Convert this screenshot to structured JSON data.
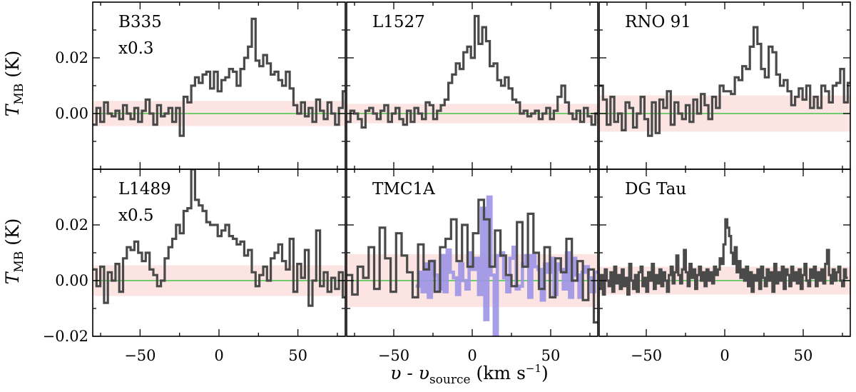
{
  "chart_data": {
    "type": "line",
    "layout": "2x3 grid, shared axes",
    "xlabel_parts": {
      "main": "υ - υ",
      "sub": "source",
      "unit_open": " (km s",
      "sup": "−1",
      "unit_close": ")"
    },
    "ylabel_parts": {
      "main": "T",
      "sub": "MB",
      "unit": " (K)"
    },
    "xlim": [
      -80,
      80
    ],
    "ylim": [
      -0.02,
      0.04
    ],
    "xticks": [
      -50,
      0,
      50
    ],
    "xtick_labels": [
      "−50",
      "0",
      "50"
    ],
    "yticks": [
      -0.02,
      0.0,
      0.02
    ],
    "ytick_labels": [
      "−0.02",
      "0.00",
      "0.02"
    ],
    "colors": {
      "spectrum": "#4a4a4a",
      "zero_line": "#5cc85c",
      "noise_band": "#fbe4e2",
      "overlay": "#9c94e6"
    },
    "panels": [
      {
        "label": "B335",
        "scale": "x0.3",
        "noise": 0.0045,
        "step": 2.4,
        "values": [
          -0.004,
          0.002,
          -0.003,
          0.004,
          0.0,
          -0.001,
          0.001,
          -0.002,
          0.003,
          0.0,
          -0.002,
          0.002,
          -0.003,
          0.001,
          0.005,
          0.0,
          -0.004,
          0.003,
          -0.001,
          0.0,
          0.002,
          -0.003,
          0.002,
          -0.008,
          0.006,
          0.004,
          0.01,
          0.013,
          0.011,
          0.014,
          0.015,
          0.009,
          0.015,
          0.008,
          0.012,
          0.013,
          0.016,
          0.015,
          0.01,
          0.016,
          0.02,
          0.024,
          0.034,
          0.019,
          0.017,
          0.021,
          0.018,
          0.014,
          0.015,
          0.012,
          0.01,
          0.015,
          0.009,
          0.003,
          0.0,
          0.004,
          -0.001,
          0.002,
          -0.003,
          0.005,
          0.001,
          -0.002,
          0.004,
          0.0,
          -0.004,
          0.002,
          0.008,
          -0.003,
          0.001,
          0.0,
          -0.003,
          0.002,
          0.0,
          0.007,
          -0.012
        ]
      },
      {
        "label": "L1527",
        "scale": "",
        "noise": 0.0035,
        "step": 2.4,
        "values": [
          -0.003,
          0.001,
          0.0,
          -0.002,
          -0.005,
          0.001,
          0.002,
          0.0,
          -0.002,
          0.001,
          0.003,
          -0.003,
          0.0,
          0.002,
          -0.002,
          -0.004,
          0.001,
          -0.003,
          0.002,
          0.0,
          -0.002,
          0.004,
          0.003,
          -0.002,
          0.001,
          0.003,
          0.005,
          0.011,
          0.014,
          0.018,
          0.016,
          0.022,
          0.024,
          0.02,
          0.035,
          0.025,
          0.031,
          0.026,
          0.017,
          0.018,
          0.012,
          0.01,
          0.013,
          0.009,
          0.005,
          0.004,
          0.0,
          0.001,
          -0.001,
          0.0,
          0.001,
          -0.002,
          0.0,
          0.002,
          -0.002,
          0.001,
          0.006,
          0.01,
          0.004,
          0.0,
          -0.002,
          0.001,
          -0.003,
          0.002,
          -0.001,
          -0.004,
          0.0,
          -0.001,
          -0.003,
          -0.002,
          0.0,
          -0.004,
          -0.003
        ]
      },
      {
        "label": "RNO 91",
        "scale": "",
        "noise": 0.0065,
        "step": 2.4,
        "values": [
          0.01,
          0.005,
          -0.004,
          0.006,
          -0.003,
          0.0,
          -0.006,
          0.004,
          0.002,
          -0.005,
          0.0,
          0.006,
          -0.002,
          -0.008,
          0.004,
          -0.007,
          0.005,
          0.002,
          0.008,
          -0.004,
          0.004,
          0.0,
          -0.002,
          0.003,
          -0.003,
          0.005,
          0.0,
          0.007,
          0.003,
          -0.002,
          0.006,
          0.002,
          0.01,
          0.008,
          0.008,
          0.007,
          0.013,
          0.012,
          0.017,
          0.016,
          0.024,
          0.031,
          0.025,
          0.016,
          0.013,
          0.024,
          0.022,
          0.014,
          0.01,
          0.012,
          0.008,
          0.003,
          0.006,
          0.009,
          0.005,
          0.01,
          0.002,
          0.006,
          0.002,
          0.01,
          0.008,
          0.004,
          0.01,
          0.011,
          0.016,
          0.004,
          0.011,
          0.0,
          -0.003,
          0.007,
          0.012,
          0.003,
          0.011,
          0.005,
          0.012,
          0.002
        ]
      },
      {
        "label": "L1489",
        "scale": "x0.5",
        "noise": 0.0055,
        "step": 2.4,
        "values": [
          0.004,
          -0.002,
          0.005,
          -0.008,
          0.003,
          0.0,
          0.006,
          -0.004,
          0.008,
          0.012,
          0.011,
          0.014,
          0.01,
          0.007,
          0.01,
          0.004,
          0.002,
          -0.002,
          0.0,
          0.008,
          0.012,
          0.015,
          0.02,
          0.017,
          0.025,
          0.026,
          0.04,
          0.029,
          0.027,
          0.025,
          0.021,
          0.02,
          0.02,
          0.016,
          0.018,
          0.02,
          0.016,
          0.015,
          0.013,
          0.014,
          0.009,
          0.011,
          0.003,
          -0.002,
          0.002,
          0.005,
          0.0,
          0.008,
          0.01,
          0.013,
          0.007,
          0.004,
          0.015,
          -0.004,
          0.006,
          0.001,
          0.011,
          -0.009,
          0.0,
          0.018,
          -0.002,
          0.003,
          -0.004,
          0.001,
          -0.003,
          0.003,
          -0.006,
          -0.012,
          0.002,
          -0.008,
          -0.004,
          0.0
        ]
      },
      {
        "label": "TMC1A",
        "scale": "",
        "noise": 0.0095,
        "step": 3.5,
        "values": [
          0.002,
          -0.005,
          0.005,
          0.001,
          0.012,
          -0.003,
          0.019,
          0.008,
          -0.004,
          0.017,
          0.009,
          0.003,
          -0.006,
          0.013,
          0.004,
          0.007,
          -0.004,
          0.012,
          0.015,
          0.022,
          0.007,
          0.02,
          0.005,
          0.017,
          0.029,
          0.022,
          0.005,
          0.018,
          0.009,
          0.002,
          -0.002,
          0.021,
          0.005,
          0.024,
          0.01,
          -0.003,
          0.012,
          -0.006,
          0.008,
          0.003,
          0.015,
          0.0,
          0.007,
          -0.007,
          0.004,
          -0.015,
          0.009,
          0.002,
          -0.009,
          0.003
        ]
      },
      {
        "label": "DG Tau",
        "scale": "",
        "noise": 0.005,
        "step": 1.2,
        "values": [
          -0.003,
          0.002,
          -0.005,
          0.004,
          0.0,
          -0.002,
          0.003,
          -0.004,
          0.005,
          -0.001,
          0.002,
          -0.003,
          0.004,
          -0.002,
          0.001,
          -0.005,
          0.006,
          0.0,
          -0.003,
          0.002,
          -0.004,
          0.003,
          0.005,
          -0.002,
          0.001,
          -0.004,
          0.003,
          0.0,
          0.006,
          -0.003,
          0.002,
          -0.001,
          0.004,
          -0.002,
          0.003,
          0.0,
          -0.004,
          0.002,
          0.005,
          -0.001,
          0.003,
          0.009,
          0.002,
          -0.001,
          0.004,
          0.011,
          0.003,
          -0.002,
          0.006,
          0.001,
          0.004,
          -0.003,
          0.002,
          0.005,
          0.0,
          0.003,
          -0.002,
          0.004,
          0.0,
          0.003,
          -0.001,
          0.005,
          0.002,
          0.004,
          0.008,
          0.006,
          0.013,
          0.022,
          0.019,
          0.016,
          0.01,
          0.006,
          0.012,
          0.003,
          0.007,
          0.001,
          0.004,
          0.0,
          0.005,
          -0.002,
          0.003,
          -0.004,
          0.002,
          0.0,
          0.004,
          -0.003,
          0.005,
          0.001,
          -0.002,
          0.004,
          0.0,
          0.003,
          -0.004,
          0.006,
          -0.001,
          0.003,
          0.0,
          0.005,
          -0.003,
          0.004,
          0.002,
          -0.002,
          0.005,
          0.0,
          0.003,
          -0.001,
          0.004,
          -0.003,
          0.002,
          0.006,
          0.0,
          -0.002,
          0.004,
          0.001,
          0.005,
          -0.002,
          0.003,
          0.0,
          0.004,
          -0.001,
          0.006,
          0.011,
          0.002,
          -0.001,
          0.004,
          0.0,
          0.003,
          0.005,
          0.0,
          -0.002,
          0.004,
          0.001
        ]
      }
    ],
    "overlay": {
      "panel": "TMC1A",
      "x_start": -36,
      "step": 2.0,
      "values": [
        -0.002,
        0.003,
        -0.004,
        0.006,
        -0.006,
        0.007,
        0.002,
        -0.003,
        0.009,
        -0.004,
        0.011,
        0.003,
        0.001,
        -0.005,
        0.006,
        0.0,
        -0.003,
        0.01,
        0.004,
        0.008,
        -0.005,
        0.026,
        -0.014,
        0.03,
        0.002,
        -0.02,
        0.009,
        0.01,
        0.001,
        -0.004,
        0.008,
        0.012,
        -0.003,
        -0.002,
        0.006,
        0.009,
        -0.006,
        0.009,
        0.005,
        0.004,
        -0.007,
        0.006,
        0.003,
        0.008,
        -0.005,
        0.006,
        0.004,
        -0.003,
        0.01,
        -0.006,
        0.008,
        0.002,
        -0.006,
        0.003,
        0.005,
        0.001,
        -0.004,
        0.003
      ]
    }
  }
}
